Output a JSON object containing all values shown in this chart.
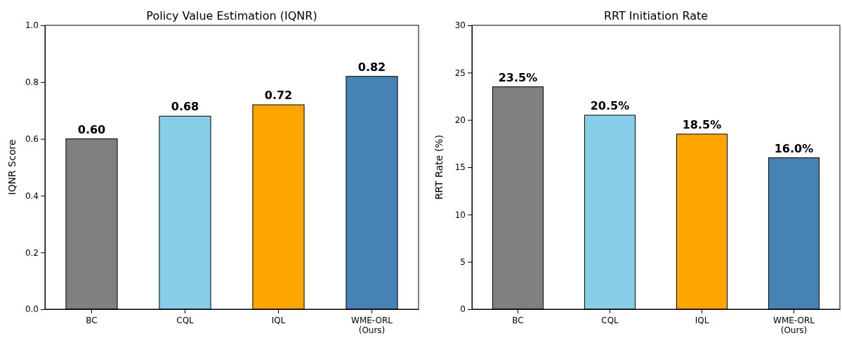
{
  "chart_data": [
    {
      "type": "bar",
      "title": "Policy Value Estimation (IQNR)",
      "ylabel": "IQNR Score",
      "categories": [
        "BC",
        "CQL",
        "IQL",
        "WME-ORL\n(Ours)"
      ],
      "values": [
        0.6,
        0.68,
        0.72,
        0.82
      ],
      "colors": [
        "#808080",
        "#87ceeb",
        "#ffa500",
        "#4682b4"
      ],
      "value_labels": [
        "0.60",
        "0.68",
        "0.72",
        "0.82"
      ],
      "ylim": [
        0,
        1
      ],
      "yticks": [
        {
          "value": 0,
          "label": "0.0"
        },
        {
          "value": 0.2,
          "label": "0.2"
        },
        {
          "value": 0.4,
          "label": "0.4"
        },
        {
          "value": 0.6,
          "label": "0.6"
        },
        {
          "value": 0.8,
          "label": "0.8"
        },
        {
          "value": 1,
          "label": "1.0"
        }
      ],
      "grid": false
    },
    {
      "type": "bar",
      "title": "RRT Initiation Rate",
      "ylabel": "RRT Rate (%)",
      "categories": [
        "BC",
        "CQL",
        "IQL",
        "WME-ORL\n(Ours)"
      ],
      "values": [
        23.5,
        20.5,
        18.5,
        16.0
      ],
      "colors": [
        "#808080",
        "#87ceeb",
        "#ffa500",
        "#4682b4"
      ],
      "value_labels": [
        "23.5%",
        "20.5%",
        "18.5%",
        "16.0%"
      ],
      "ylim": [
        0,
        30
      ],
      "yticks": [
        0,
        5,
        10,
        15,
        20,
        25,
        30
      ],
      "grid": false
    }
  ]
}
